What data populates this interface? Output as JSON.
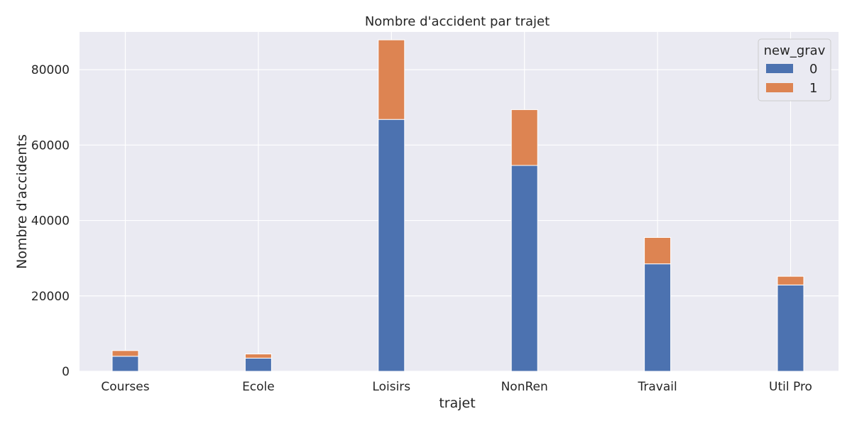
{
  "chart_data": {
    "type": "bar",
    "stacked": true,
    "title": "Nombre d'accident par trajet",
    "xlabel": "trajet",
    "ylabel": "Nombre d'accidents",
    "categories": [
      "Courses",
      "Ecole",
      "Loisirs",
      "NonRen",
      "Travail",
      "Util Pro"
    ],
    "series": [
      {
        "name": "0",
        "color": "#4c72b0",
        "values": [
          4000,
          3500,
          66800,
          54600,
          28500,
          22900
        ]
      },
      {
        "name": "1",
        "color": "#dd8452",
        "values": [
          1500,
          1100,
          21100,
          14800,
          7000,
          2300
        ]
      }
    ],
    "ylim": [
      0,
      90000
    ],
    "yticks": [
      0,
      20000,
      40000,
      60000,
      80000
    ],
    "ytick_labels": [
      "0",
      "20000",
      "40000",
      "60000",
      "80000"
    ],
    "legend": {
      "title": "new_grav",
      "placement": "top-right"
    },
    "grid": true,
    "background": "#eaeaf2"
  }
}
